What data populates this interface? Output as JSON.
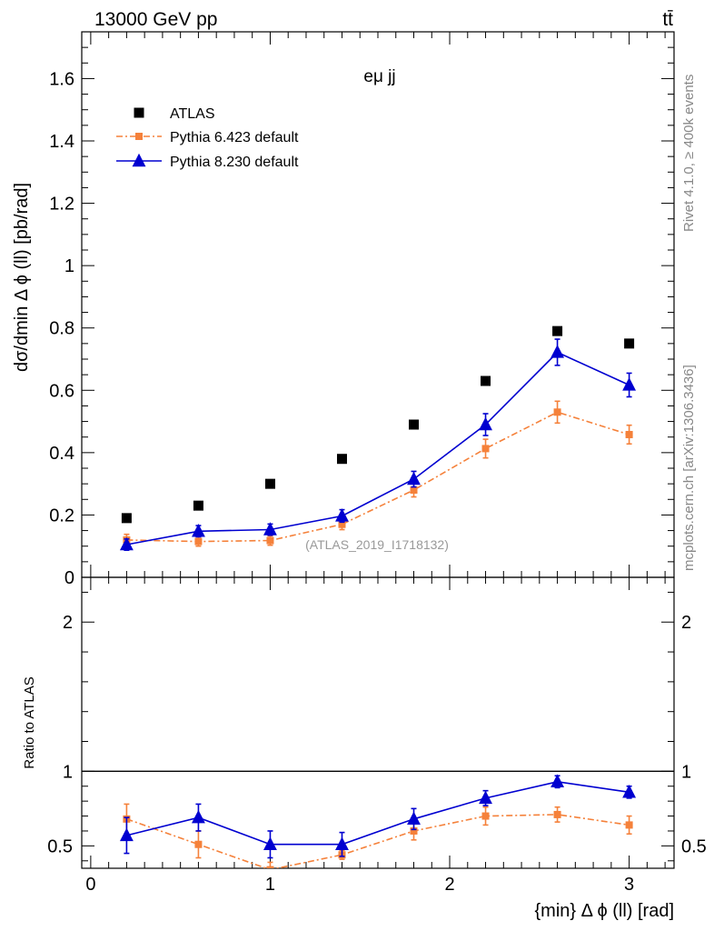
{
  "header": {
    "energy_label": "13000 GeV pp",
    "process_label": "tt̄",
    "channel_label": "eμ jj",
    "watermark": "(ATLAS_2019_I1718132)",
    "side_text_top": "Rivet 4.1.0, ≥ 400k events",
    "side_text_bottom": "mcplots.cern.ch [arXiv:1306.3436]"
  },
  "colors": {
    "atlas": "#000000",
    "pythia6": "#f5813a",
    "pythia8": "#0000d0",
    "watermark": "#999999",
    "side_text": "#888888"
  },
  "chart_data": [
    {
      "type": "scatter",
      "title": "",
      "xlabel": "",
      "ylabel": "dσ/dmin Δ ϕ (ll) [pb/rad]",
      "xlim": [
        -0.05,
        3.25
      ],
      "ylim": [
        0,
        1.75
      ],
      "yticks": [
        0,
        0.2,
        0.4,
        0.6,
        0.8,
        1,
        1.2,
        1.4,
        1.6
      ],
      "ytick_labels": [
        "0",
        "0.2",
        "0.4",
        "0.6",
        "0.8",
        "1",
        "1.2",
        "1.4",
        "1.6"
      ],
      "legend_position": "top-left",
      "x": [
        0.2,
        0.6,
        1.0,
        1.4,
        1.8,
        2.2,
        2.6,
        3.0
      ],
      "series": [
        {
          "name": "ATLAS",
          "style": "marker",
          "marker": "square",
          "color": "#000000",
          "values": [
            0.19,
            0.23,
            0.3,
            0.38,
            0.49,
            0.63,
            0.79,
            0.75
          ],
          "errors": [
            0,
            0,
            0,
            0,
            0,
            0,
            0,
            0
          ]
        },
        {
          "name": "Pythia 6.423 default",
          "style": "dashdot",
          "marker": "square",
          "color": "#f5813a",
          "values": [
            0.12,
            0.115,
            0.118,
            0.17,
            0.28,
            0.413,
            0.53,
            0.458
          ],
          "errors": [
            0.018,
            0.015,
            0.015,
            0.017,
            0.022,
            0.03,
            0.035,
            0.03
          ]
        },
        {
          "name": "Pythia 8.230 default",
          "style": "solid",
          "marker": "triangle",
          "color": "#0000d0",
          "values": [
            0.105,
            0.148,
            0.153,
            0.197,
            0.315,
            0.49,
            0.722,
            0.617
          ],
          "errors": [
            0.018,
            0.018,
            0.018,
            0.02,
            0.025,
            0.035,
            0.042,
            0.038
          ]
        }
      ]
    },
    {
      "type": "scatter",
      "title": "",
      "xlabel": "{min} Δ ϕ (ll) [rad]",
      "ylabel": "Ratio to ATLAS",
      "xlim": [
        -0.05,
        3.25
      ],
      "ylim": [
        0.35,
        2.3
      ],
      "xticks": [
        0,
        1,
        2,
        3
      ],
      "xtick_labels": [
        "0",
        "1",
        "2",
        "3"
      ],
      "yticks": [
        0.5,
        1,
        2
      ],
      "ytick_labels": [
        "0.5",
        "1",
        "2"
      ],
      "reference_line": 1,
      "x": [
        0.2,
        0.6,
        1.0,
        1.4,
        1.8,
        2.2,
        2.6,
        3.0
      ],
      "series": [
        {
          "name": "Pythia 6.423 default",
          "style": "dashdot",
          "marker": "square",
          "color": "#f5813a",
          "values": [
            0.68,
            0.51,
            0.34,
            0.44,
            0.6,
            0.7,
            0.71,
            0.64
          ],
          "errors": [
            0.1,
            0.09,
            0.05,
            0.03,
            0.06,
            0.06,
            0.05,
            0.06
          ]
        },
        {
          "name": "Pythia 8.230 default",
          "style": "solid",
          "marker": "triangle",
          "color": "#0000d0",
          "values": [
            0.57,
            0.69,
            0.51,
            0.51,
            0.68,
            0.82,
            0.93,
            0.86
          ],
          "errors": [
            0.12,
            0.09,
            0.09,
            0.08,
            0.07,
            0.05,
            0.04,
            0.04
          ]
        }
      ]
    }
  ]
}
